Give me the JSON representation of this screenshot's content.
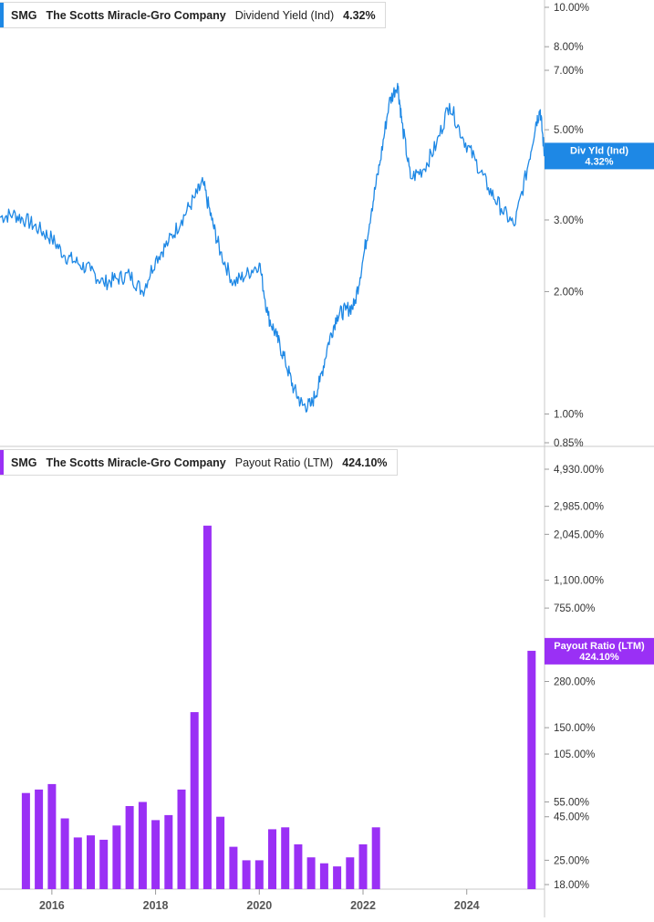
{
  "panels": {
    "top": {
      "ticker": "SMG",
      "company": "The Scotts Miracle-Gro Company",
      "metric": "Dividend Yield (Ind)",
      "value": "4.32%",
      "color": "#1e88e5",
      "tag_label": "Div Yld (Ind)",
      "tag_value": "4.32%"
    },
    "bottom": {
      "ticker": "SMG",
      "company": "The Scotts Miracle-Gro Company",
      "metric": "Payout Ratio (LTM)",
      "value": "424.10%",
      "color": "#9a30f5",
      "tag_label": "Payout Ratio (LTM)",
      "tag_value": "424.10%"
    }
  },
  "x_axis": {
    "ticks": [
      "2016",
      "2018",
      "2020",
      "2022",
      "2024"
    ]
  },
  "chart_data": [
    {
      "type": "line",
      "title": "SMG The Scotts Miracle-Gro Company Dividend Yield (Ind) 4.32%",
      "scale": "log",
      "ylim": [
        0.85,
        10.0
      ],
      "y_ticks": [
        {
          "value": 10.0,
          "label": "10.00%"
        },
        {
          "value": 8.0,
          "label": "8.00%"
        },
        {
          "value": 7.0,
          "label": "7.00%"
        },
        {
          "value": 5.0,
          "label": "5.00%"
        },
        {
          "value": 3.0,
          "label": "3.00%"
        },
        {
          "value": 2.0,
          "label": "2.00%"
        },
        {
          "value": 1.0,
          "label": "1.00%"
        },
        {
          "value": 0.85,
          "label": "0.85%"
        }
      ],
      "series": [
        {
          "name": "Div Yld (Ind)",
          "x": [
            "2015-01",
            "2015-04",
            "2015-07",
            "2015-10",
            "2016-01",
            "2016-04",
            "2016-07",
            "2016-10",
            "2017-01",
            "2017-04",
            "2017-07",
            "2017-10",
            "2018-01",
            "2018-04",
            "2018-07",
            "2018-10",
            "2018-12",
            "2019-02",
            "2019-04",
            "2019-07",
            "2019-10",
            "2020-01",
            "2020-03",
            "2020-05",
            "2020-07",
            "2020-09",
            "2020-11",
            "2021-01",
            "2021-03",
            "2021-05",
            "2021-07",
            "2021-09",
            "2021-11",
            "2022-01",
            "2022-03",
            "2022-05",
            "2022-07",
            "2022-09",
            "2022-10",
            "2022-12",
            "2023-03",
            "2023-06",
            "2023-09",
            "2023-12",
            "2024-03",
            "2024-06",
            "2024-09",
            "2024-12",
            "2025-03",
            "2025-05",
            "2025-06",
            "2025-07"
          ],
          "values": [
            3.05,
            3.1,
            3.0,
            2.85,
            2.7,
            2.45,
            2.35,
            2.25,
            2.1,
            2.15,
            2.2,
            2.0,
            2.4,
            2.65,
            3.0,
            3.4,
            3.7,
            3.0,
            2.5,
            2.1,
            2.2,
            2.35,
            1.75,
            1.55,
            1.35,
            1.15,
            1.05,
            1.05,
            1.2,
            1.5,
            1.75,
            1.8,
            1.85,
            2.4,
            3.2,
            4.2,
            5.8,
            6.5,
            5.2,
            3.8,
            4.0,
            4.6,
            5.8,
            4.8,
            4.2,
            3.6,
            3.2,
            2.9,
            4.0,
            5.2,
            5.6,
            4.32
          ]
        }
      ]
    },
    {
      "type": "bar",
      "title": "SMG The Scotts Miracle-Gro Company Payout Ratio (LTM) 424.10%",
      "scale": "log",
      "ylim": [
        18.0,
        4930.0
      ],
      "y_ticks": [
        {
          "value": 4930,
          "label": "4,930.00%"
        },
        {
          "value": 2985,
          "label": "2,985.00%"
        },
        {
          "value": 2045,
          "label": "2,045.00%"
        },
        {
          "value": 1100,
          "label": "1,100.00%"
        },
        {
          "value": 755,
          "label": "755.00%"
        },
        {
          "value": 280,
          "label": "280.00%"
        },
        {
          "value": 150,
          "label": "150.00%"
        },
        {
          "value": 105,
          "label": "105.00%"
        },
        {
          "value": 55,
          "label": "55.00%"
        },
        {
          "value": 45,
          "label": "45.00%"
        },
        {
          "value": 25,
          "label": "25.00%"
        },
        {
          "value": 18,
          "label": "18.00%"
        }
      ],
      "series": [
        {
          "name": "Payout Ratio (LTM)",
          "x": [
            "2015-07",
            "2015-10",
            "2016-01",
            "2016-04",
            "2016-07",
            "2016-10",
            "2017-01",
            "2017-04",
            "2017-07",
            "2017-10",
            "2018-01",
            "2018-04",
            "2018-07",
            "2018-10",
            "2019-01",
            "2019-04",
            "2019-07",
            "2019-10",
            "2020-01",
            "2020-04",
            "2020-07",
            "2020-10",
            "2021-01",
            "2021-04",
            "2021-07",
            "2021-10",
            "2022-01",
            "2022-04",
            "2025-04"
          ],
          "values": [
            62,
            65,
            70,
            44,
            34,
            35,
            33,
            40,
            52,
            55,
            43,
            46,
            65,
            185,
            2300,
            45,
            30,
            25,
            25,
            38,
            39,
            31,
            26,
            24,
            23,
            26,
            31,
            39,
            424.1
          ]
        }
      ]
    }
  ]
}
